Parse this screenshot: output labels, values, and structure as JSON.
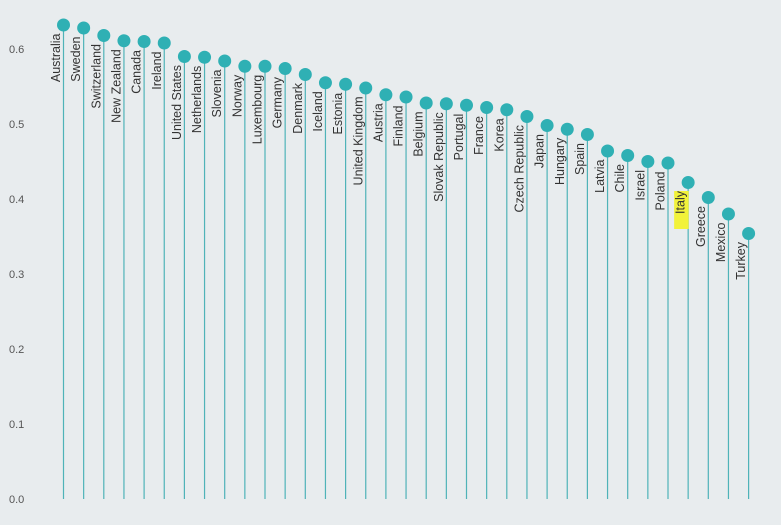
{
  "colors": {
    "background": "#e8ecee",
    "stem": "#4fb3b8",
    "marker": "#2fb0b4",
    "highlight": "#f2f23a",
    "text": "#333333"
  },
  "chart_data": {
    "type": "lollipop",
    "title": "",
    "xlabel": "",
    "ylabel": "",
    "ylim": [
      0,
      0.65
    ],
    "yticks": [
      "0.0",
      "0.1",
      "0.2",
      "0.3",
      "0.4",
      "0.5",
      "0.6"
    ],
    "highlighted_category": "Italy",
    "categories": [
      "Australia",
      "Sweden",
      "Switzerland",
      "New Zealand",
      "Canada",
      "Ireland",
      "United States",
      "Netherlands",
      "Slovenia",
      "Norway",
      "Luxembourg",
      "Germany",
      "Denmark",
      "Iceland",
      "Estonia",
      "United Kingdom",
      "Austria",
      "Finland",
      "Belgium",
      "Slovak Republic",
      "Portugal",
      "France",
      "Korea",
      "Czech Republic",
      "Japan",
      "Hungary",
      "Spain",
      "Latvia",
      "Chile",
      "Israel",
      "Poland",
      "Italy",
      "Greece",
      "Mexico",
      "Turkey"
    ],
    "values": [
      0.632,
      0.628,
      0.618,
      0.611,
      0.61,
      0.608,
      0.59,
      0.589,
      0.584,
      0.577,
      0.577,
      0.574,
      0.566,
      0.555,
      0.553,
      0.548,
      0.539,
      0.536,
      0.528,
      0.527,
      0.525,
      0.522,
      0.519,
      0.51,
      0.498,
      0.493,
      0.486,
      0.464,
      0.458,
      0.45,
      0.448,
      0.422,
      0.402,
      0.38,
      0.354
    ]
  }
}
